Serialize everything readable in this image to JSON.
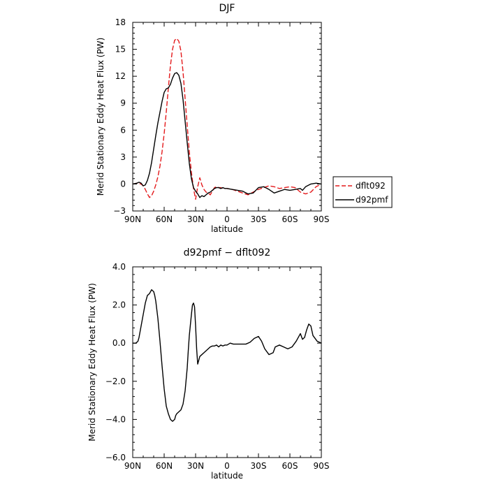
{
  "chart_data": [
    {
      "type": "line",
      "title": "DJF",
      "xlabel": "latitude",
      "ylabel": "Merid Stationary Eddy Heat Flux (PW)",
      "xlim": [
        90,
        -90
      ],
      "ylim": [
        -3,
        18
      ],
      "xticks": [
        90,
        60,
        30,
        0,
        -30,
        -60,
        -90
      ],
      "xtick_labels": [
        "90N",
        "60N",
        "30N",
        "0",
        "30S",
        "60S",
        "90S"
      ],
      "yticks": [
        -3,
        0,
        3,
        6,
        9,
        12,
        15,
        18
      ],
      "ytick_labels": [
        "−3",
        "0",
        "3",
        "6",
        "9",
        "12",
        "15",
        "18"
      ],
      "legend": {
        "placement": "right",
        "entries": [
          "dflt092",
          "d92pmf"
        ]
      },
      "series": [
        {
          "name": "dflt092",
          "color": "#e41a1c",
          "dash": "dashed",
          "x": [
            90,
            85,
            82,
            80,
            78,
            76,
            74,
            72,
            70,
            68,
            66,
            64,
            62,
            60,
            58,
            56,
            54,
            52,
            50,
            48,
            46,
            44,
            42,
            40,
            38,
            36,
            34,
            32,
            30,
            28,
            26,
            24,
            22,
            20,
            18,
            16,
            14,
            12,
            10,
            8,
            6,
            4,
            0,
            -5,
            -10,
            -15,
            -20,
            -25,
            -30,
            -35,
            -40,
            -45,
            -50,
            -55,
            -60,
            -65,
            -70,
            -75,
            -80,
            -85,
            -90
          ],
          "y": [
            0.0,
            0.1,
            0.0,
            -0.2,
            -0.6,
            -1.1,
            -1.5,
            -1.3,
            -0.8,
            -0.1,
            0.8,
            2.0,
            3.6,
            5.6,
            8.0,
            10.7,
            13.2,
            15.0,
            16.0,
            16.2,
            15.9,
            14.8,
            12.5,
            9.5,
            6.5,
            3.6,
            1.3,
            -0.5,
            -1.7,
            -0.3,
            0.7,
            -0.1,
            -0.6,
            -0.9,
            -1.0,
            -1.2,
            -0.8,
            -0.4,
            -0.3,
            -0.4,
            -0.4,
            -0.5,
            -0.5,
            -0.6,
            -0.8,
            -1.0,
            -1.2,
            -0.9,
            -0.6,
            -0.4,
            -0.2,
            -0.3,
            -0.5,
            -0.4,
            -0.3,
            -0.4,
            -0.9,
            -1.1,
            -0.9,
            -0.3,
            0.0
          ]
        },
        {
          "name": "d92pmf",
          "color": "#000000",
          "dash": "solid",
          "x": [
            90,
            86,
            84,
            82,
            80,
            78,
            76,
            74,
            72,
            70,
            68,
            66,
            64,
            62,
            60,
            58,
            56,
            54,
            52,
            50,
            48,
            46,
            44,
            42,
            40,
            38,
            36,
            34,
            32,
            30,
            28,
            26,
            24,
            22,
            20,
            18,
            16,
            14,
            12,
            10,
            8,
            6,
            4,
            2,
            0,
            -5,
            -10,
            -15,
            -20,
            -25,
            -30,
            -35,
            -40,
            -45,
            -50,
            -55,
            -60,
            -65,
            -70,
            -72,
            -75,
            -80,
            -85,
            -90
          ],
          "y": [
            0.0,
            0.1,
            0.2,
            0.1,
            -0.2,
            -0.1,
            0.4,
            1.2,
            2.4,
            3.9,
            5.4,
            6.8,
            8.0,
            9.2,
            10.2,
            10.6,
            10.7,
            11.1,
            11.8,
            12.3,
            12.4,
            12.1,
            11.2,
            9.4,
            7.0,
            4.6,
            2.3,
            0.6,
            -0.4,
            -0.8,
            -1.1,
            -1.5,
            -1.3,
            -1.4,
            -1.2,
            -1.0,
            -0.9,
            -0.7,
            -0.5,
            -0.4,
            -0.4,
            -0.5,
            -0.4,
            -0.5,
            -0.5,
            -0.6,
            -0.7,
            -0.8,
            -1.1,
            -1.0,
            -0.4,
            -0.3,
            -0.6,
            -1.0,
            -0.8,
            -0.6,
            -0.7,
            -0.6,
            -0.5,
            -0.7,
            -0.3,
            0.0,
            0.1,
            0.0
          ]
        }
      ]
    },
    {
      "type": "line",
      "title": "d92pmf − dflt092",
      "xlabel": "latitude",
      "ylabel": "Merid Stationary Eddy Heat Flux (PW)",
      "xlim": [
        90,
        -90
      ],
      "ylim": [
        -6,
        4
      ],
      "xticks": [
        90,
        60,
        30,
        0,
        -30,
        -60,
        -90
      ],
      "xtick_labels": [
        "90N",
        "60N",
        "30N",
        "0",
        "30S",
        "60S",
        "90S"
      ],
      "yticks": [
        -6,
        -4,
        -2,
        0,
        2,
        4
      ],
      "ytick_labels": [
        "−6.0",
        "−4.0",
        "−2.0",
        "0.0",
        "2.0",
        "4.0"
      ],
      "series": [
        {
          "color": "#000000",
          "dash": "solid",
          "x": [
            90,
            87,
            85,
            84,
            82,
            80,
            78,
            76,
            74,
            72,
            70,
            69,
            68,
            66,
            64,
            62,
            60,
            58,
            56,
            54,
            52,
            50,
            49,
            48,
            46,
            44,
            42,
            40,
            38,
            37,
            36,
            34,
            33,
            32,
            31,
            30,
            29,
            28,
            27,
            26,
            24,
            22,
            20,
            18,
            16,
            14,
            12,
            10,
            8,
            6,
            4,
            2,
            0,
            -3,
            -6,
            -10,
            -14,
            -18,
            -22,
            -26,
            -30,
            -33,
            -36,
            -40,
            -44,
            -46,
            -50,
            -54,
            -58,
            -62,
            -66,
            -70,
            -72,
            -74,
            -76,
            -78,
            -80,
            -82,
            -86,
            -90
          ],
          "y": [
            0.0,
            0.0,
            0.1,
            0.3,
            0.9,
            1.5,
            2.1,
            2.5,
            2.6,
            2.8,
            2.7,
            2.5,
            2.2,
            1.3,
            0.1,
            -1.2,
            -2.4,
            -3.3,
            -3.7,
            -4.0,
            -4.1,
            -4.0,
            -3.8,
            -3.7,
            -3.6,
            -3.5,
            -3.2,
            -2.5,
            -1.3,
            -0.4,
            0.4,
            1.5,
            2.0,
            2.1,
            1.9,
            0.9,
            -0.3,
            -1.1,
            -0.9,
            -0.7,
            -0.6,
            -0.5,
            -0.4,
            -0.3,
            -0.2,
            -0.15,
            -0.15,
            -0.1,
            -0.2,
            -0.1,
            -0.15,
            -0.1,
            -0.1,
            0.0,
            -0.05,
            -0.05,
            -0.05,
            -0.05,
            0.05,
            0.25,
            0.35,
            0.1,
            -0.3,
            -0.6,
            -0.5,
            -0.2,
            -0.1,
            -0.2,
            -0.3,
            -0.2,
            0.1,
            0.5,
            0.2,
            0.3,
            0.7,
            1.0,
            0.9,
            0.4,
            0.1,
            0.0
          ]
        }
      ]
    }
  ]
}
